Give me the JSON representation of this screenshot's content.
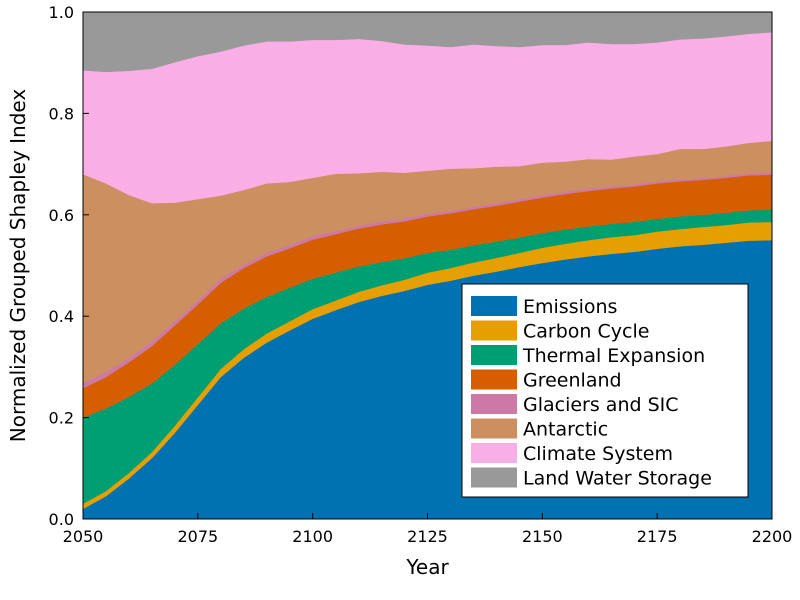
{
  "chart_data": {
    "type": "area",
    "stacked": true,
    "xlabel": "Year",
    "ylabel": "Normalized Grouped Shapley Index",
    "xlim": [
      2050,
      2200
    ],
    "ylim": [
      0.0,
      1.0
    ],
    "x_ticks": [
      "2050",
      "2075",
      "2100",
      "2125",
      "2150",
      "2175",
      "2200"
    ],
    "y_ticks": [
      "0.0",
      "0.2",
      "0.4",
      "0.6",
      "0.8",
      "1.0"
    ],
    "grid": false,
    "legend_position": "bottom-right",
    "x": [
      2050,
      2055,
      2060,
      2065,
      2070,
      2075,
      2080,
      2085,
      2090,
      2095,
      2100,
      2105,
      2110,
      2115,
      2120,
      2125,
      2130,
      2135,
      2140,
      2145,
      2150,
      2155,
      2160,
      2165,
      2170,
      2175,
      2180,
      2185,
      2190,
      2195,
      2200
    ],
    "series": [
      {
        "name": "Emissions",
        "color": "#0072B2",
        "values": [
          0.02,
          0.045,
          0.08,
          0.12,
          0.17,
          0.225,
          0.28,
          0.318,
          0.348,
          0.372,
          0.395,
          0.412,
          0.428,
          0.44,
          0.45,
          0.462,
          0.47,
          0.48,
          0.488,
          0.497,
          0.505,
          0.512,
          0.518,
          0.523,
          0.527,
          0.533,
          0.538,
          0.541,
          0.545,
          0.549,
          0.55
        ]
      },
      {
        "name": "Carbon Cycle",
        "color": "#E69F00",
        "values": [
          0.01,
          0.01,
          0.011,
          0.012,
          0.014,
          0.015,
          0.016,
          0.017,
          0.018,
          0.018,
          0.019,
          0.019,
          0.02,
          0.021,
          0.022,
          0.024,
          0.025,
          0.026,
          0.027,
          0.028,
          0.03,
          0.031,
          0.032,
          0.033,
          0.033,
          0.034,
          0.034,
          0.035,
          0.035,
          0.036,
          0.036
        ]
      },
      {
        "name": "Thermal Expansion",
        "color": "#009E73",
        "values": [
          0.17,
          0.163,
          0.15,
          0.135,
          0.12,
          0.105,
          0.09,
          0.08,
          0.072,
          0.066,
          0.06,
          0.055,
          0.05,
          0.046,
          0.042,
          0.039,
          0.036,
          0.034,
          0.032,
          0.03,
          0.029,
          0.028,
          0.027,
          0.026,
          0.026,
          0.025,
          0.025,
          0.024,
          0.024,
          0.024,
          0.024
        ]
      },
      {
        "name": "Greenland",
        "color": "#D55E00",
        "values": [
          0.058,
          0.062,
          0.068,
          0.074,
          0.078,
          0.078,
          0.08,
          0.08,
          0.08,
          0.078,
          0.077,
          0.076,
          0.075,
          0.074,
          0.073,
          0.072,
          0.072,
          0.071,
          0.071,
          0.071,
          0.07,
          0.07,
          0.07,
          0.07,
          0.07,
          0.07,
          0.069,
          0.069,
          0.069,
          0.069,
          0.069
        ]
      },
      {
        "name": "Glaciers and SIC",
        "color": "#CC79A7",
        "values": [
          0.01,
          0.01,
          0.009,
          0.009,
          0.008,
          0.008,
          0.008,
          0.007,
          0.007,
          0.007,
          0.007,
          0.006,
          0.006,
          0.006,
          0.006,
          0.005,
          0.005,
          0.005,
          0.005,
          0.005,
          0.005,
          0.005,
          0.005,
          0.004,
          0.004,
          0.004,
          0.004,
          0.004,
          0.004,
          0.004,
          0.004
        ]
      },
      {
        "name": "Antarctic",
        "color": "#CC9060",
        "values": [
          0.412,
          0.372,
          0.321,
          0.273,
          0.234,
          0.2,
          0.164,
          0.147,
          0.137,
          0.124,
          0.115,
          0.113,
          0.103,
          0.098,
          0.09,
          0.085,
          0.083,
          0.076,
          0.072,
          0.065,
          0.064,
          0.059,
          0.058,
          0.053,
          0.055,
          0.054,
          0.06,
          0.057,
          0.058,
          0.06,
          0.063
        ]
      },
      {
        "name": "Climate System",
        "color": "#F9AEE6",
        "values": [
          0.205,
          0.22,
          0.245,
          0.265,
          0.277,
          0.282,
          0.284,
          0.285,
          0.28,
          0.277,
          0.272,
          0.264,
          0.265,
          0.258,
          0.253,
          0.247,
          0.24,
          0.244,
          0.238,
          0.235,
          0.232,
          0.23,
          0.23,
          0.228,
          0.222,
          0.22,
          0.216,
          0.218,
          0.217,
          0.215,
          0.214
        ]
      },
      {
        "name": "Land Water Storage",
        "color": "#999999",
        "values": [
          0.115,
          0.118,
          0.116,
          0.112,
          0.099,
          0.087,
          0.078,
          0.066,
          0.058,
          0.058,
          0.055,
          0.055,
          0.053,
          0.057,
          0.064,
          0.066,
          0.069,
          0.064,
          0.067,
          0.069,
          0.065,
          0.065,
          0.06,
          0.063,
          0.063,
          0.06,
          0.054,
          0.052,
          0.048,
          0.043,
          0.04
        ]
      }
    ]
  }
}
